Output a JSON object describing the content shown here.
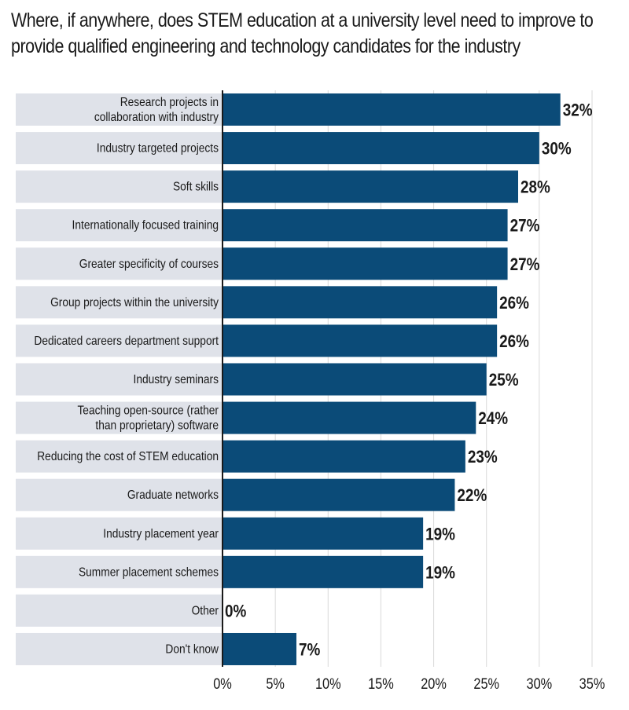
{
  "chart_data": {
    "type": "bar",
    "orientation": "horizontal",
    "title_lines": [
      "Where, if anywhere, does STEM education at a university level need to improve to",
      "provide qualified engineering and technology candidates for the industry"
    ],
    "categories": [
      [
        "Research projects in",
        "collaboration with industry"
      ],
      [
        "Industry targeted projects"
      ],
      [
        "Soft skills"
      ],
      [
        "Internationally focused training"
      ],
      [
        "Greater specificity of courses"
      ],
      [
        "Group projects within the university"
      ],
      [
        "Dedicated careers department support"
      ],
      [
        "Industry seminars"
      ],
      [
        "Teaching open-source (rather",
        "than proprietary) software"
      ],
      [
        "Reducing the cost of STEM education"
      ],
      [
        "Graduate networks"
      ],
      [
        "Industry placement year"
      ],
      [
        "Summer placement schemes"
      ],
      [
        "Other"
      ],
      [
        "Don't know"
      ]
    ],
    "values": [
      32,
      30,
      28,
      27,
      27,
      26,
      26,
      25,
      24,
      23,
      22,
      19,
      19,
      0,
      7
    ],
    "value_labels": [
      "32%",
      "30%",
      "28%",
      "27%",
      "27%",
      "26%",
      "26%",
      "25%",
      "24%",
      "23%",
      "22%",
      "19%",
      "19%",
      "0%",
      "7%"
    ],
    "xticks": [
      0,
      5,
      10,
      15,
      20,
      25,
      30,
      35
    ],
    "xtick_labels": [
      "0%",
      "5%",
      "10%",
      "15%",
      "20%",
      "25%",
      "30%",
      "35%"
    ],
    "xlim": [
      0,
      35
    ],
    "grid": true,
    "xlabel": "",
    "ylabel": "",
    "colors": {
      "bar": "#0b4b78",
      "row_band": "#dfe2e9",
      "grid": "#d9d9d9",
      "axis": "#1a1a1a"
    }
  }
}
